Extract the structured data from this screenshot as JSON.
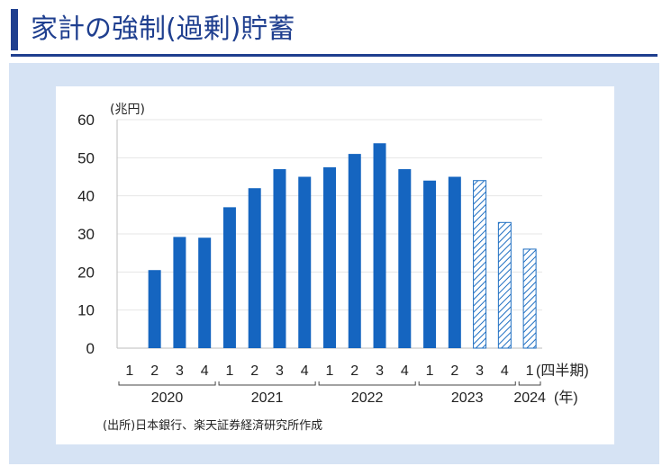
{
  "page": {
    "title": "家計の強制(過剰)貯蓄"
  },
  "chart_data": {
    "type": "bar",
    "unit_label": "(兆円)",
    "yticks": [
      "0",
      "10",
      "20",
      "30",
      "40",
      "50",
      "60"
    ],
    "ylim": [
      0,
      60
    ],
    "categories": [
      "1",
      "2",
      "3",
      "4",
      "1",
      "2",
      "3",
      "4",
      "1",
      "2",
      "3",
      "4",
      "1",
      "2",
      "3",
      "4",
      "1"
    ],
    "category_suffix": "(四半期)",
    "year_labels": [
      "2020",
      "2021",
      "2022",
      "2023",
      "2024"
    ],
    "year_suffix": "(年)",
    "values": [
      null,
      20.5,
      29.2,
      29.0,
      37.0,
      42.0,
      47.0,
      45.0,
      47.5,
      51.0,
      53.8,
      47.0,
      44.0,
      45.0,
      44.0,
      33.0,
      26.0
    ],
    "hatched": [
      false,
      false,
      false,
      false,
      false,
      false,
      false,
      false,
      false,
      false,
      false,
      false,
      false,
      false,
      true,
      true,
      true
    ],
    "colors": {
      "solid": "#1565c0",
      "hatch": "#1f6fc2"
    },
    "source": "(出所)日本銀行、楽天証券経済研究所作成"
  }
}
